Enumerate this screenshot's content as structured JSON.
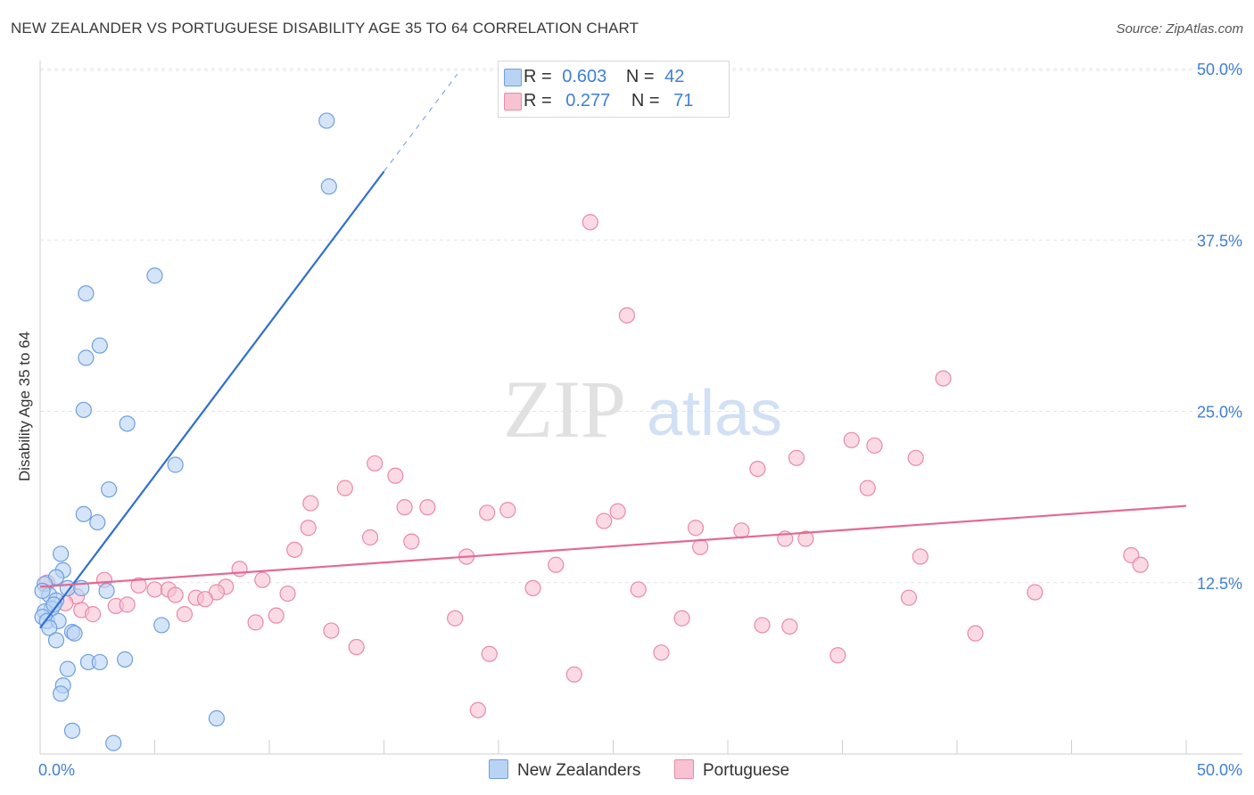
{
  "title": "NEW ZEALANDER VS PORTUGUESE DISABILITY AGE 35 TO 64 CORRELATION CHART",
  "source": "Source: ZipAtlas.com",
  "watermark": {
    "zip": "ZIP",
    "atlas": "atlas"
  },
  "legend_top": [
    {
      "r_label": "R =",
      "r_value": "0.603",
      "n_label": "N =",
      "n_value": "42"
    },
    {
      "r_label": "R =",
      "r_value": "0.277",
      "n_label": "N =",
      "n_value": "71"
    }
  ],
  "legend_bottom": [
    "New Zealanders",
    "Portuguese"
  ],
  "colors": {
    "nz_fill": "#b9d3f5",
    "nz_stroke": "#6f9fde",
    "nz_line": "#2f6fd0",
    "pt_fill": "#f8c2d2",
    "pt_stroke": "#e88aa8",
    "pt_line": "#e36a94",
    "axis_label": "#3f7fd6",
    "grid": "#e4e4e4"
  },
  "chart_data": {
    "type": "scatter",
    "title": "NEW ZEALANDER VS PORTUGUESE DISABILITY AGE 35 TO 64 CORRELATION CHART",
    "xlabel": "",
    "ylabel": "Disability Age 35 to 64",
    "xlim": [
      0,
      50
    ],
    "ylim": [
      0,
      50
    ],
    "x_tick_labels": [
      {
        "value": 0,
        "label": "0.0%"
      },
      {
        "value": 50,
        "label": "50.0%"
      }
    ],
    "y_tick_labels": [
      {
        "value": 12.5,
        "label": "12.5%"
      },
      {
        "value": 25,
        "label": "25.0%"
      },
      {
        "value": 37.5,
        "label": "37.5%"
      },
      {
        "value": 50,
        "label": "50.0%"
      }
    ],
    "series": [
      {
        "name": "New Zealanders",
        "r": 0.603,
        "n": 42,
        "trend": {
          "x0": 0,
          "y0": 9.2,
          "x1": 15,
          "y1": 42.5,
          "dash_to_x": 18.2,
          "dash_to_y": 49.6
        },
        "points": [
          [
            12.5,
            46.2
          ],
          [
            12.6,
            41.4
          ],
          [
            5.0,
            34.9
          ],
          [
            2.0,
            33.6
          ],
          [
            2.6,
            29.8
          ],
          [
            2.0,
            28.9
          ],
          [
            1.9,
            25.1
          ],
          [
            3.8,
            24.1
          ],
          [
            5.9,
            21.1
          ],
          [
            3.0,
            19.3
          ],
          [
            1.9,
            17.5
          ],
          [
            2.5,
            16.9
          ],
          [
            0.9,
            14.6
          ],
          [
            1.0,
            13.4
          ],
          [
            0.7,
            12.9
          ],
          [
            0.2,
            12.4
          ],
          [
            1.2,
            12.1
          ],
          [
            1.8,
            12.1
          ],
          [
            2.9,
            11.9
          ],
          [
            0.4,
            11.6
          ],
          [
            0.7,
            11.2
          ],
          [
            0.5,
            10.6
          ],
          [
            0.2,
            10.4
          ],
          [
            0.1,
            10.0
          ],
          [
            0.3,
            9.7
          ],
          [
            0.8,
            9.7
          ],
          [
            0.4,
            9.2
          ],
          [
            1.4,
            8.9
          ],
          [
            1.5,
            8.8
          ],
          [
            5.3,
            9.4
          ],
          [
            0.7,
            8.3
          ],
          [
            2.1,
            6.7
          ],
          [
            2.6,
            6.7
          ],
          [
            3.7,
            6.9
          ],
          [
            1.2,
            6.2
          ],
          [
            1.0,
            5.0
          ],
          [
            0.9,
            4.4
          ],
          [
            7.7,
            2.6
          ],
          [
            1.4,
            1.7
          ],
          [
            3.2,
            0.8
          ],
          [
            0.1,
            11.9
          ],
          [
            0.6,
            10.9
          ]
        ]
      },
      {
        "name": "Portuguese",
        "r": 0.277,
        "n": 71,
        "trend": {
          "x0": 0,
          "y0": 12.2,
          "x1": 50,
          "y1": 18.1
        },
        "points": [
          [
            24.0,
            38.8
          ],
          [
            25.6,
            32.0
          ],
          [
            39.4,
            27.4
          ],
          [
            35.4,
            22.9
          ],
          [
            36.4,
            22.5
          ],
          [
            33.0,
            21.6
          ],
          [
            38.2,
            21.6
          ],
          [
            31.3,
            20.8
          ],
          [
            14.6,
            21.2
          ],
          [
            15.5,
            20.3
          ],
          [
            13.3,
            19.4
          ],
          [
            36.1,
            19.4
          ],
          [
            11.8,
            18.3
          ],
          [
            15.9,
            18.0
          ],
          [
            16.9,
            18.0
          ],
          [
            19.5,
            17.6
          ],
          [
            20.4,
            17.8
          ],
          [
            25.2,
            17.7
          ],
          [
            24.6,
            17.0
          ],
          [
            11.7,
            16.5
          ],
          [
            28.6,
            16.5
          ],
          [
            30.6,
            16.3
          ],
          [
            14.4,
            15.8
          ],
          [
            16.2,
            15.5
          ],
          [
            32.5,
            15.7
          ],
          [
            33.4,
            15.7
          ],
          [
            28.8,
            15.1
          ],
          [
            11.1,
            14.9
          ],
          [
            18.6,
            14.4
          ],
          [
            38.4,
            14.4
          ],
          [
            47.6,
            14.5
          ],
          [
            48.0,
            13.8
          ],
          [
            22.5,
            13.8
          ],
          [
            8.7,
            13.5
          ],
          [
            9.7,
            12.7
          ],
          [
            2.8,
            12.7
          ],
          [
            0.3,
            12.5
          ],
          [
            4.3,
            12.3
          ],
          [
            8.1,
            12.2
          ],
          [
            21.5,
            12.1
          ],
          [
            26.1,
            12.0
          ],
          [
            5.0,
            12.0
          ],
          [
            5.6,
            12.0
          ],
          [
            7.7,
            11.8
          ],
          [
            10.8,
            11.7
          ],
          [
            5.9,
            11.6
          ],
          [
            1.6,
            11.5
          ],
          [
            6.8,
            11.4
          ],
          [
            7.2,
            11.3
          ],
          [
            37.9,
            11.4
          ],
          [
            43.4,
            11.8
          ],
          [
            1.1,
            11.0
          ],
          [
            3.3,
            10.8
          ],
          [
            3.8,
            10.9
          ],
          [
            1.8,
            10.5
          ],
          [
            2.3,
            10.2
          ],
          [
            6.3,
            10.2
          ],
          [
            10.3,
            10.1
          ],
          [
            18.1,
            9.9
          ],
          [
            28.0,
            9.9
          ],
          [
            9.4,
            9.6
          ],
          [
            31.5,
            9.4
          ],
          [
            32.7,
            9.3
          ],
          [
            12.7,
            9.0
          ],
          [
            40.8,
            8.8
          ],
          [
            13.8,
            7.8
          ],
          [
            27.1,
            7.4
          ],
          [
            19.6,
            7.3
          ],
          [
            34.8,
            7.2
          ],
          [
            23.3,
            5.8
          ],
          [
            19.1,
            3.2
          ]
        ]
      }
    ]
  }
}
